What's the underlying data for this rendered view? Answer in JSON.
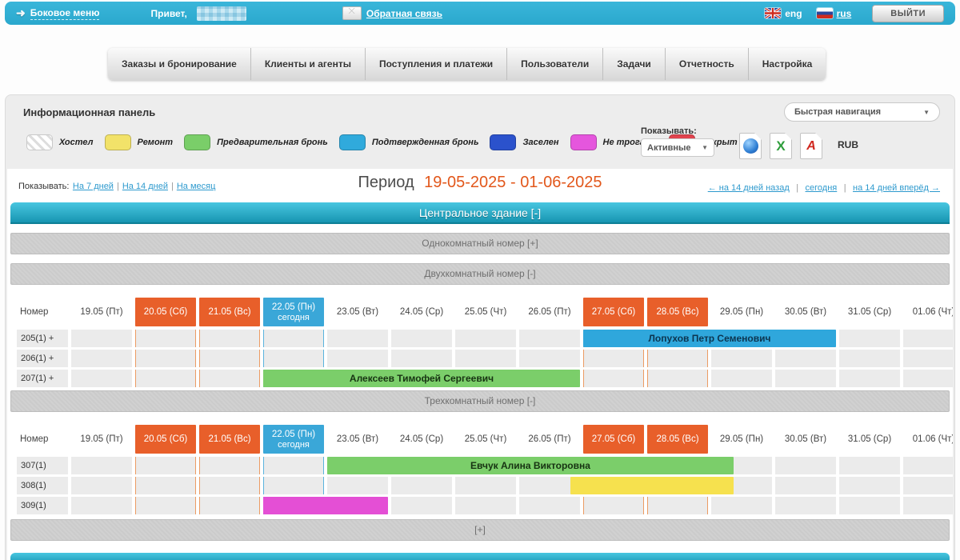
{
  "topbar": {
    "side_menu": "Боковое меню",
    "greeting": "Привет,",
    "feedback": "Обратная связь",
    "lang_eng": "eng",
    "lang_rus": "rus",
    "logout": "выйти"
  },
  "nav": {
    "tabs": [
      "Заказы и бронирование",
      "Клиенты и агенты",
      "Поступления и платежи",
      "Пользователи",
      "Задачи",
      "Отчетность",
      "Настройка"
    ]
  },
  "panel": {
    "title": "Информационная панель",
    "quick_nav": "Быстрая навигация",
    "show_label": "Показывать:",
    "show_filter": "Активные",
    "currency": "RUB",
    "legend": [
      {
        "label": "Хостел",
        "color": "hatched"
      },
      {
        "label": "Ремонт",
        "color": "#f2e269"
      },
      {
        "label": "Предварительная бронь",
        "color": "#7ace69"
      },
      {
        "label": "Подтвержденная бронь",
        "color": "#30aadc"
      },
      {
        "label": "Заселен",
        "color": "#2b52cc"
      },
      {
        "label": "Не трогать",
        "color": "#e556dd"
      },
      {
        "label": "Закрыт",
        "color": "#e2434e"
      }
    ]
  },
  "period": {
    "show_label": "Показывать:",
    "ranges": [
      "На 7 дней",
      "На 14 дней",
      "На месяц"
    ],
    "title": "Период",
    "dates": "19-05-2025 - 01-06-2025",
    "nav_back": "← на 14 дней назад",
    "nav_today": "сегодня",
    "nav_forward": "на 14 дней вперёд →"
  },
  "building_header": "Центральное здание [-]",
  "sections": {
    "one_room": "Однокомнатный номер [+]",
    "two_room": "Двухкомнатный номер [-]",
    "three_room": "Трехкомнатный номер [-]",
    "more": "[+]"
  },
  "calendar": {
    "room_col_header": "Номер",
    "days": [
      {
        "label": "19.05 (Пт)",
        "type": "normal"
      },
      {
        "label": "20.05 (Сб)",
        "type": "weekend"
      },
      {
        "label": "21.05 (Вс)",
        "type": "weekend"
      },
      {
        "label": "22.05 (Пн)",
        "sub": "сегодня",
        "type": "today"
      },
      {
        "label": "23.05 (Вт)",
        "type": "normal"
      },
      {
        "label": "24.05 (Ср)",
        "type": "normal"
      },
      {
        "label": "25.05 (Чт)",
        "type": "normal"
      },
      {
        "label": "26.05 (Пт)",
        "type": "normal"
      },
      {
        "label": "27.05 (Сб)",
        "type": "weekend"
      },
      {
        "label": "28.05 (Вс)",
        "type": "weekend"
      },
      {
        "label": "29.05 (Пн)",
        "type": "normal"
      },
      {
        "label": "30.05 (Вт)",
        "type": "normal"
      },
      {
        "label": "31.05 (Ср)",
        "type": "normal"
      },
      {
        "label": "01.06 (Чт)",
        "type": "normal"
      }
    ],
    "tables": [
      {
        "rooms": [
          {
            "name": "205(1) +",
            "bookings": [
              {
                "text": "Лопухов Петр Семенович",
                "color": "#2fa7dc",
                "text_color": "#0c3550",
                "start": 8,
                "span": 4
              }
            ]
          },
          {
            "name": "206(1) +",
            "bookings": []
          },
          {
            "name": "207(1) +",
            "bookings": [
              {
                "text": "Алексеев Тимофей Сергеевич",
                "color": "#7bce6a",
                "text_color": "#173312",
                "start": 3,
                "span": 5
              }
            ]
          }
        ]
      },
      {
        "rooms": [
          {
            "name": "307(1)",
            "bookings": [
              {
                "text": "Евчук Алина Викторовна",
                "color": "#7bce6a",
                "text_color": "#173312",
                "start": 4,
                "span": 6.4
              }
            ]
          },
          {
            "name": "308(1)",
            "bookings": [
              {
                "text": "",
                "color": "#f6e14e",
                "text_color": "#333",
                "start": 7.8,
                "span": 2.6
              }
            ]
          },
          {
            "name": "309(1)",
            "bookings": [
              {
                "text": "",
                "color": "#e44fd5",
                "text_color": "#333",
                "start": 3,
                "span": 2
              }
            ]
          }
        ]
      }
    ]
  }
}
